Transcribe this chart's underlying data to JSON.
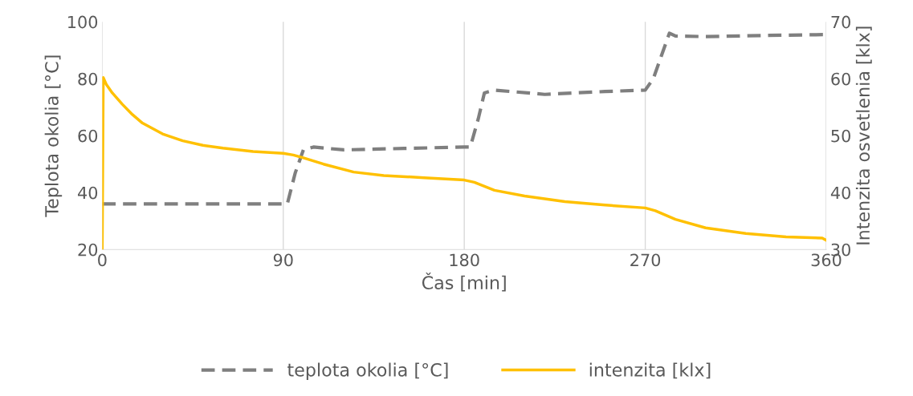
{
  "chart_data": {
    "type": "line",
    "xlabel": "Čas [min]",
    "ylabel": "Teplota okolia [°C]",
    "y2label": "Intenzita osvetlenia [klx]",
    "xlim": [
      0,
      360
    ],
    "xticks": [
      0,
      90,
      180,
      270,
      360
    ],
    "ylim": [
      20,
      100
    ],
    "yticks": [
      20,
      40,
      60,
      80,
      100
    ],
    "y2lim": [
      30,
      70
    ],
    "y2ticks": [
      30,
      40,
      50,
      60,
      70
    ],
    "grid": "x",
    "legend": "bottom",
    "series": [
      {
        "name": "teplota okolia [°C]",
        "color": "#7f7f7f",
        "line_style": "dashed",
        "x": [
          0,
          92,
          96,
          100,
          105,
          120,
          150,
          180,
          183,
          187,
          190,
          195,
          220,
          250,
          270,
          274,
          278,
          282,
          285,
          300,
          330,
          360
        ],
        "values": [
          36,
          36,
          47,
          55,
          56,
          55,
          55.5,
          56,
          56,
          66,
          75,
          76,
          74.5,
          75.5,
          76,
          80,
          88,
          96,
          95,
          94.8,
          95.2,
          95.5
        ]
      },
      {
        "name": "intenzita [klx]",
        "color": "#ffc000",
        "line_style": "solid",
        "axis": "y2",
        "x": [
          0,
          0.5,
          2,
          5,
          10,
          15,
          20,
          30,
          40,
          50,
          60,
          75,
          90,
          95,
          100,
          110,
          125,
          140,
          160,
          180,
          185,
          195,
          210,
          230,
          250,
          270,
          275,
          285,
          300,
          320,
          340,
          358,
          360
        ],
        "values": [
          30,
          60.2,
          59,
          57.5,
          55.5,
          53.7,
          52.2,
          50.3,
          49.1,
          48.3,
          47.8,
          47.2,
          46.9,
          46.6,
          46.1,
          45,
          43.6,
          43,
          42.6,
          42.2,
          41.8,
          40.4,
          39.4,
          38.4,
          37.8,
          37.3,
          36.8,
          35.3,
          33.8,
          32.8,
          32.2,
          32,
          31.6
        ]
      }
    ]
  }
}
